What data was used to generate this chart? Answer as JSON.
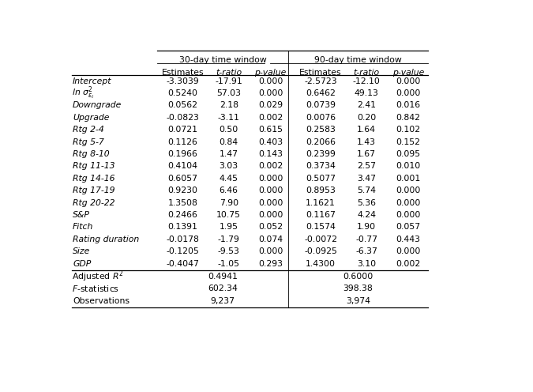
{
  "col_headers_l1": [
    "30-day time window",
    "90-day time window"
  ],
  "col_headers_l2": [
    "Estimates",
    "t-ratio",
    "p-value",
    "Estimates",
    "t-ratio",
    "p-value"
  ],
  "row_labels": [
    "Intercept",
    "SPECIAL_LN",
    "Downgrade",
    "Upgrade",
    "Rtg 2-4",
    "Rtg 5-7",
    "Rtg 8-10",
    "Rtg 11-13",
    "Rtg 14-16",
    "Rtg 17-19",
    "Rtg 20-22",
    "S&P",
    "Fitch",
    "Rating duration",
    "Size",
    "GDP"
  ],
  "data_30": [
    [
      "-3.3039",
      "-17.91",
      "0.000"
    ],
    [
      "0.5240",
      "57.03",
      "0.000"
    ],
    [
      "0.0562",
      "2.18",
      "0.029"
    ],
    [
      "-0.0823",
      "-3.11",
      "0.002"
    ],
    [
      "0.0721",
      "0.50",
      "0.615"
    ],
    [
      "0.1126",
      "0.84",
      "0.403"
    ],
    [
      "0.1966",
      "1.47",
      "0.143"
    ],
    [
      "0.4104",
      "3.03",
      "0.002"
    ],
    [
      "0.6057",
      "4.45",
      "0.000"
    ],
    [
      "0.9230",
      "6.46",
      "0.000"
    ],
    [
      "1.3508",
      "7.90",
      "0.000"
    ],
    [
      "0.2466",
      "10.75",
      "0.000"
    ],
    [
      "0.1391",
      "1.95",
      "0.052"
    ],
    [
      "-0.0178",
      "-1.79",
      "0.074"
    ],
    [
      "-0.1205",
      "-9.53",
      "0.000"
    ],
    [
      "-0.4047",
      "-1.05",
      "0.293"
    ]
  ],
  "data_90": [
    [
      "-2.5723",
      "-12.10",
      "0.000"
    ],
    [
      "0.6462",
      "49.13",
      "0.000"
    ],
    [
      "0.0739",
      "2.41",
      "0.016"
    ],
    [
      "0.0076",
      "0.20",
      "0.842"
    ],
    [
      "0.2583",
      "1.64",
      "0.102"
    ],
    [
      "0.2066",
      "1.43",
      "0.152"
    ],
    [
      "0.2399",
      "1.67",
      "0.095"
    ],
    [
      "0.3734",
      "2.57",
      "0.010"
    ],
    [
      "0.5077",
      "3.47",
      "0.001"
    ],
    [
      "0.8953",
      "5.74",
      "0.000"
    ],
    [
      "1.1621",
      "5.36",
      "0.000"
    ],
    [
      "0.1167",
      "4.24",
      "0.000"
    ],
    [
      "0.1574",
      "1.90",
      "0.057"
    ],
    [
      "-0.0072",
      "-0.77",
      "0.443"
    ],
    [
      "-0.0925",
      "-6.37",
      "0.000"
    ],
    [
      "1.4300",
      "3.10",
      "0.002"
    ]
  ],
  "footer_labels": [
    "Adjusted R2",
    "F-statistics",
    "Observations"
  ],
  "footer_30": [
    "0.4941",
    "602.34",
    "9,237"
  ],
  "footer_90": [
    "0.6000",
    "398.38",
    "3,974"
  ],
  "bg_color": "#ffffff",
  "font_size": 7.8
}
